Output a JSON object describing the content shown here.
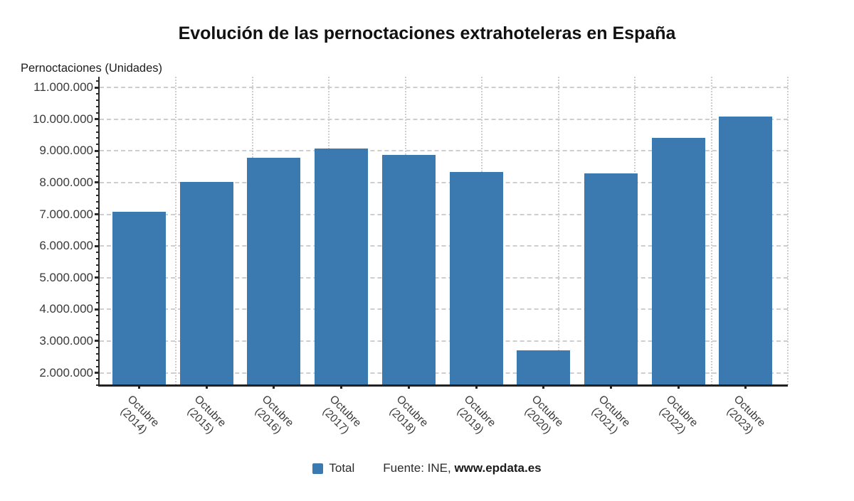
{
  "title": "Evolución de las pernoctaciones extrahoteleras en España",
  "axis_title": "Pernoctaciones (Unidades)",
  "legend": {
    "label": "Total",
    "source_prefix": "Fuente: INE, ",
    "source_site": "www.epdata.es"
  },
  "colors": {
    "bar": "#3b79b1",
    "grid": "#cdced0",
    "axis": "#2b2b2b",
    "tick_text": "#3a3a3a",
    "title_text": "#111111"
  },
  "chart_data": {
    "type": "bar",
    "title": "Evolución de las pernoctaciones extrahoteleras en España",
    "ylabel": "Pernoctaciones (Unidades)",
    "categories": [
      [
        "Octubre",
        "(2014)"
      ],
      [
        "Octubre",
        "(2015)"
      ],
      [
        "Octubre",
        "(2016)"
      ],
      [
        "Octubre",
        "(2017)"
      ],
      [
        "Octubre",
        "(2018)"
      ],
      [
        "Octubre",
        "(2019)"
      ],
      [
        "Octubre",
        "(2020)"
      ],
      [
        "Octubre",
        "(2021)"
      ],
      [
        "Octubre",
        "(2022)"
      ],
      [
        "Octubre",
        "(2023)"
      ]
    ],
    "series": [
      {
        "name": "Total",
        "values": [
          7080000,
          8020000,
          8780000,
          9070000,
          8870000,
          8330000,
          2710000,
          8280000,
          9400000,
          10090000
        ]
      }
    ],
    "ylim": [
      1600000,
      11200000
    ],
    "yticks": {
      "values": [
        2000000,
        3000000,
        4000000,
        5000000,
        6000000,
        7000000,
        8000000,
        9000000,
        10000000,
        11000000
      ],
      "labels": [
        "2.000.000",
        "3.000.000",
        "4.000.000",
        "5.000.000",
        "6.000.000",
        "7.000.000",
        "8.000.000",
        "9.000.000",
        "10.000.000",
        "11.000.000"
      ]
    },
    "grid": true,
    "legend_position": "bottom"
  }
}
